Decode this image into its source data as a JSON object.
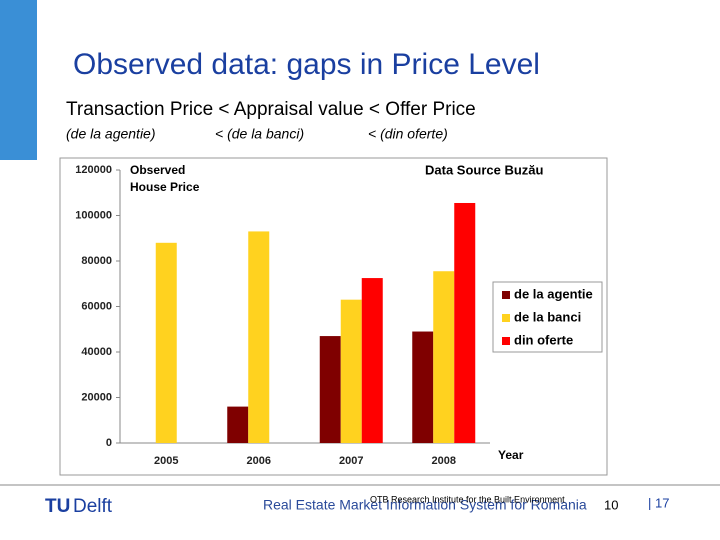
{
  "slide": {
    "title": "Observed data: gaps in Price Level",
    "subtitle": "Transaction Price < Appraisal value < Offer Price",
    "notes": [
      "(de la agentie)",
      "<  (de la banci)",
      "< (din oferte)"
    ]
  },
  "chart_data": {
    "type": "bar",
    "annotation": [
      "Observed",
      "House Price"
    ],
    "source": "Data Source Buzău",
    "x_label": "Year",
    "categories": [
      "2005",
      "2006",
      "2007",
      "2008"
    ],
    "series": [
      {
        "name": "de la agentie",
        "color": "#7f0000",
        "values": [
          null,
          16000,
          47000,
          49000
        ]
      },
      {
        "name": "de la banci",
        "color": "#ffd21f",
        "values": [
          88000,
          93000,
          63000,
          75500
        ]
      },
      {
        "name": "din oferte",
        "color": "#ff0000",
        "values": [
          null,
          null,
          72500,
          105500
        ]
      }
    ],
    "ylim": [
      0,
      120000
    ],
    "yticks": [
      0,
      20000,
      40000,
      60000,
      80000,
      100000,
      120000
    ],
    "legend": "right"
  },
  "footer": {
    "logo": [
      "TU",
      "Delft"
    ],
    "institute": "OTB Research Institute for the Built Environment",
    "system": "Real Estate Market Information System for Romania",
    "slide_number": "10",
    "page": "| 17"
  }
}
